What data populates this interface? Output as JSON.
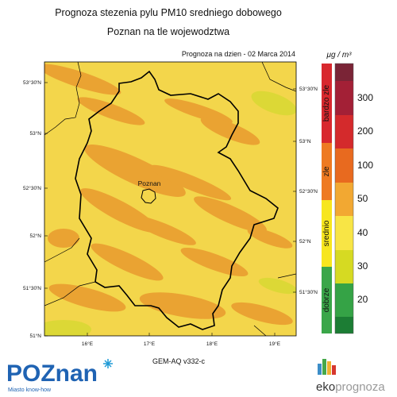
{
  "header": {
    "title": "Prognoza stezenia pylu PM10 sredniego dobowego",
    "subtitle": "Poznan na tle wojewodztwa",
    "forecast_date": "Prognoza na dzien -  02 Marca 2014"
  },
  "map": {
    "lat_labels_left": [
      "53°30'N",
      "53°N",
      "52°30'N",
      "52°N",
      "51°30'N",
      "51°N"
    ],
    "lat_labels_right": [
      "53°30'N",
      "53°N",
      "52°30'N",
      "52°N",
      "51°30'N"
    ],
    "lon_labels": [
      "16°E",
      "17°E",
      "18°E",
      "19°E"
    ],
    "city_label": "Poznan",
    "model_label": "GEM-AQ v332-c"
  },
  "legend": {
    "unit": "μg / m³",
    "categories": [
      "bardzo zle",
      "zle",
      "srednio",
      "dobrze"
    ],
    "levels": [
      "300",
      "200",
      "100",
      "50",
      "40",
      "30",
      "20"
    ]
  },
  "footer": {
    "city_logo": "POZnan",
    "city_slogan": "Miasto know-how",
    "brand_prefix": "eko",
    "brand_suffix": "prognoza"
  }
}
